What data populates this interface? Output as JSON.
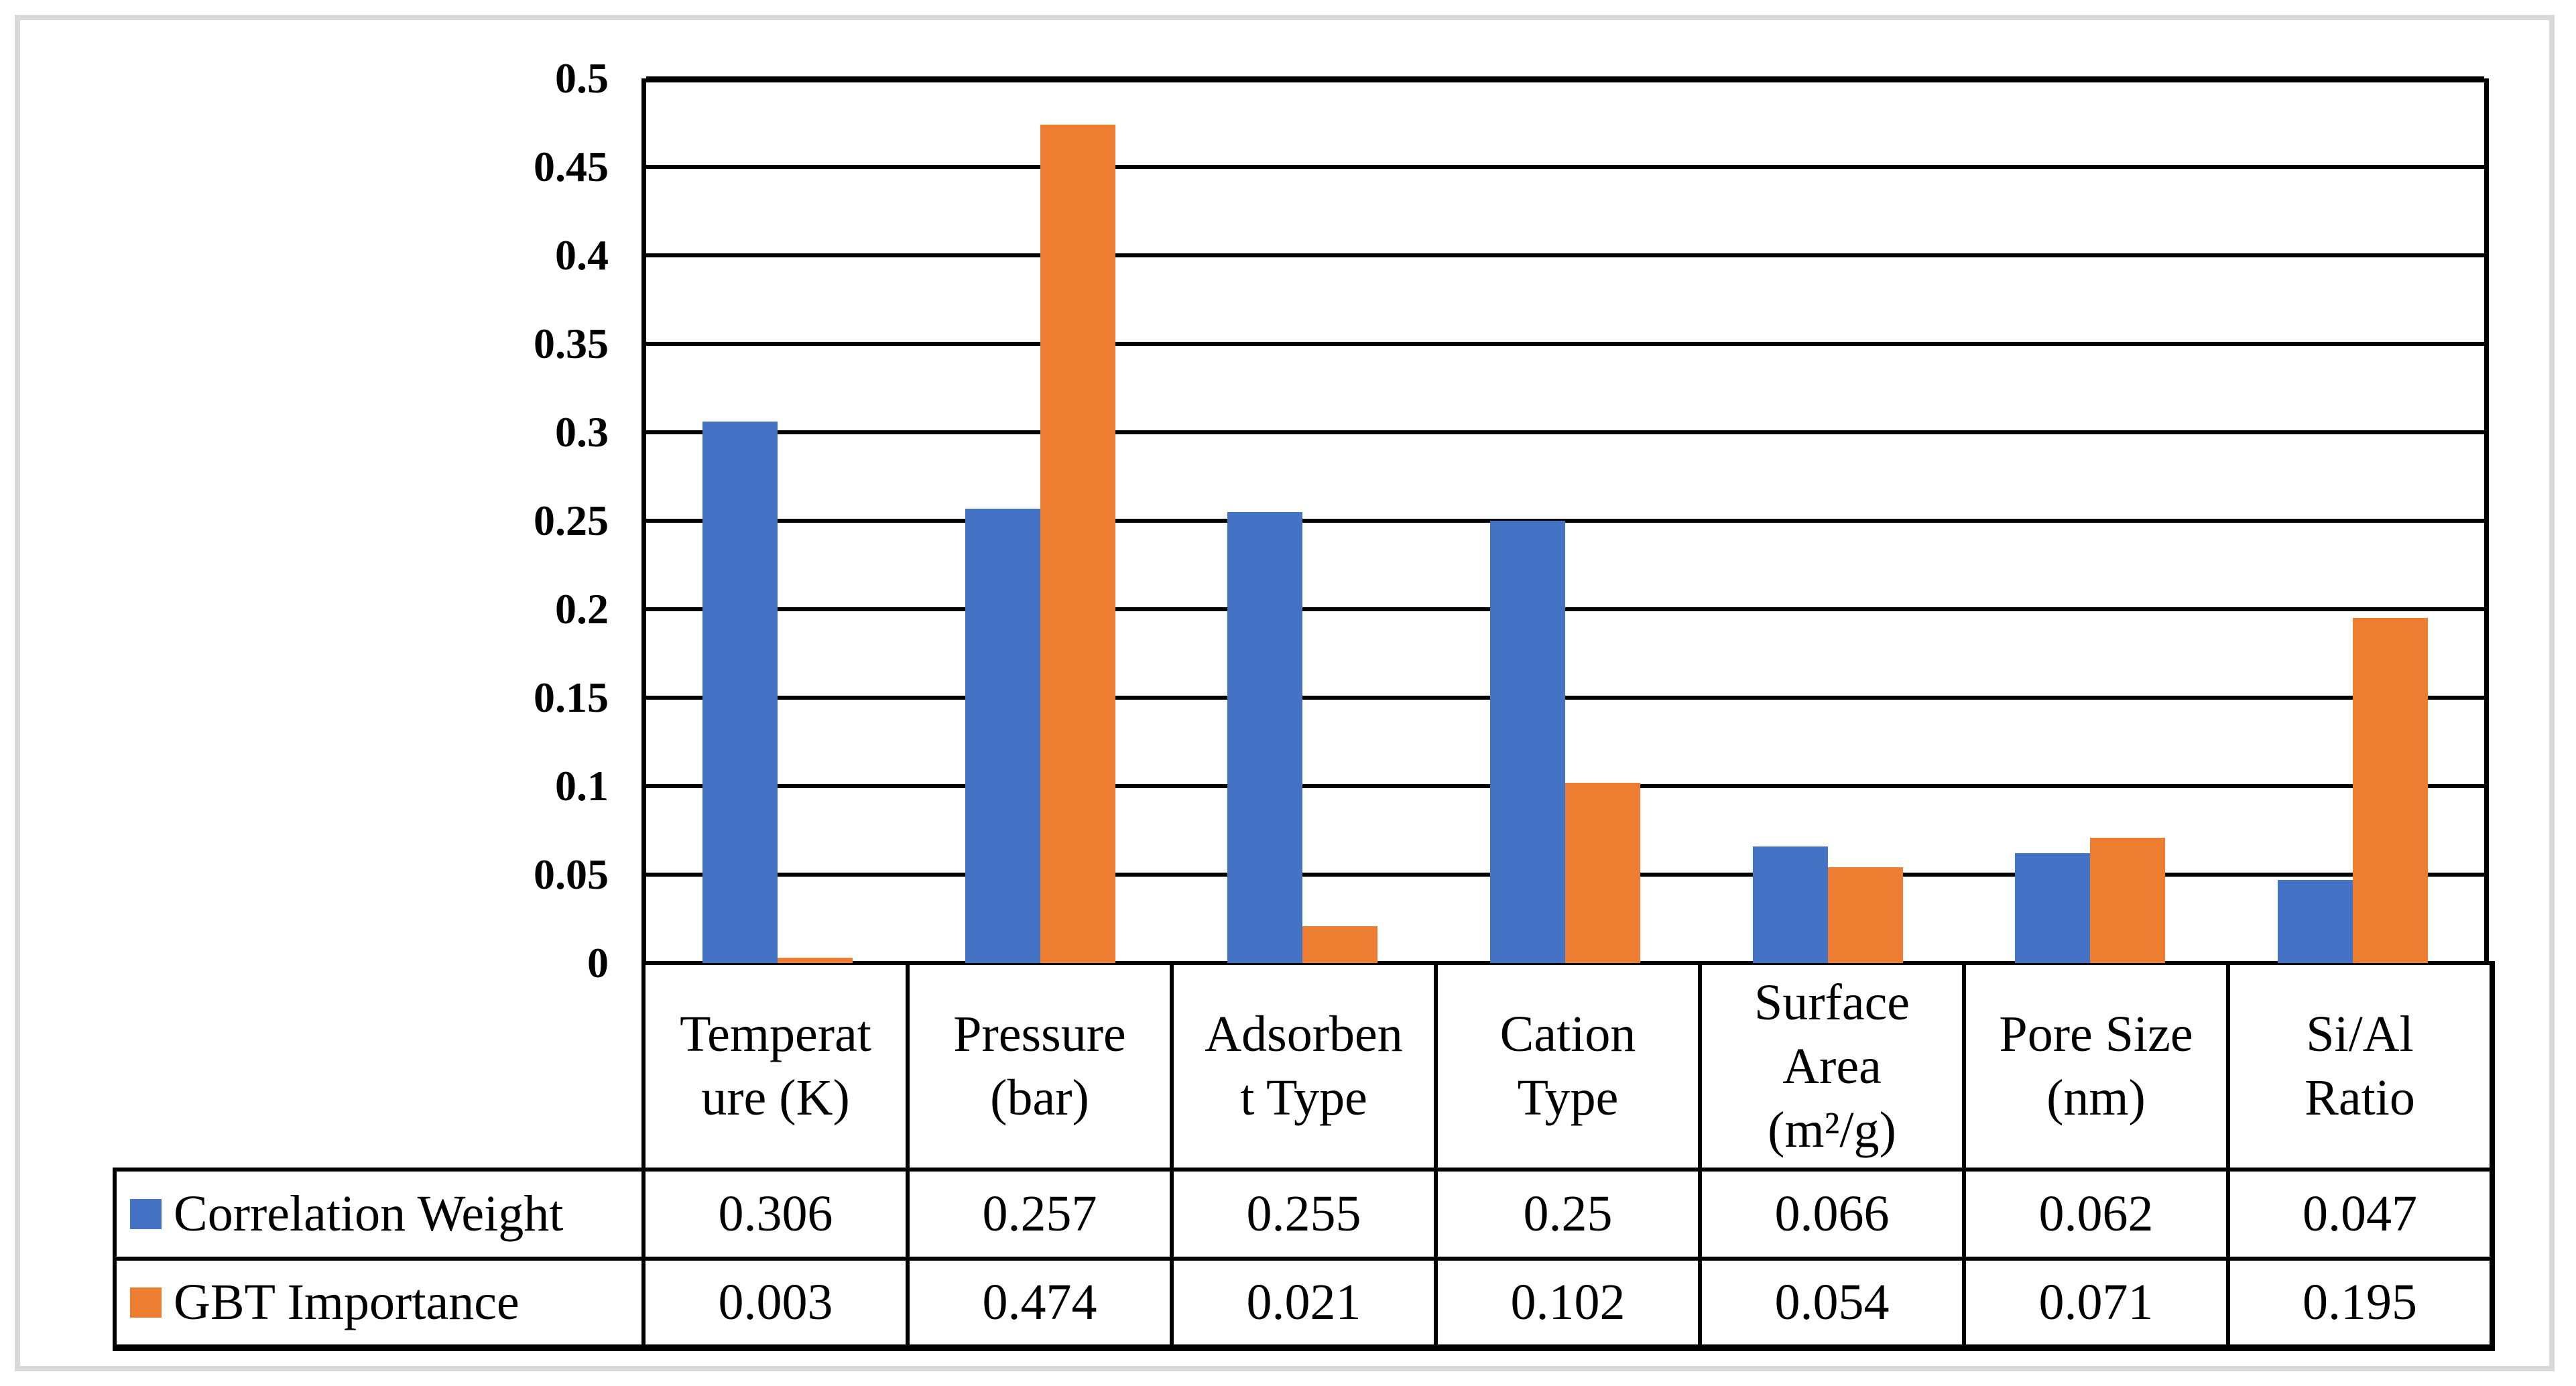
{
  "figure": {
    "background": "#FFFFFF",
    "frame_color": "#D9D9D9",
    "gridline_color": "#000000"
  },
  "chart_data": {
    "type": "bar",
    "title": "",
    "xlabel": "",
    "ylabel": "",
    "ylim": [
      0,
      0.5
    ],
    "grid": true,
    "legend_position": "table-left",
    "y_ticks": [
      0,
      0.05,
      0.1,
      0.15,
      0.2,
      0.25,
      0.3,
      0.35,
      0.4,
      0.45,
      0.5
    ],
    "y_tick_labels": [
      "0",
      "0.05",
      "0.1",
      "0.15",
      "0.2",
      "0.25",
      "0.3",
      "0.35",
      "0.4",
      "0.45",
      "0.5"
    ],
    "categories": [
      "Temperature (K)",
      "Pressure (bar)",
      "Adsorbent Type",
      "Cation Type",
      "Surface Area (m²/g)",
      "Pore Size (nm)",
      "Si/Al Ratio"
    ],
    "category_label_lines": [
      [
        "Temperat",
        "ure (K)"
      ],
      [
        "Pressure",
        "(bar)"
      ],
      [
        "Adsorben",
        "t Type"
      ],
      [
        "Cation",
        "Type"
      ],
      [
        "Surface",
        "Area",
        "(m²/g)"
      ],
      [
        "Pore Size",
        "(nm)"
      ],
      [
        "Si/Al",
        "Ratio"
      ]
    ],
    "series": [
      {
        "name": "Correlation Weight",
        "color": "#4472C4",
        "values": [
          0.306,
          0.257,
          0.255,
          0.25,
          0.066,
          0.062,
          0.047
        ],
        "value_labels": [
          "0.306",
          "0.257",
          "0.255",
          "0.25",
          "0.066",
          "0.062",
          "0.047"
        ]
      },
      {
        "name": "GBT Importance",
        "color": "#ED7D31",
        "values": [
          0.003,
          0.474,
          0.021,
          0.102,
          0.054,
          0.071,
          0.195
        ],
        "value_labels": [
          "0.003",
          "0.474",
          "0.021",
          "0.102",
          "0.054",
          "0.071",
          "0.195"
        ]
      }
    ]
  }
}
